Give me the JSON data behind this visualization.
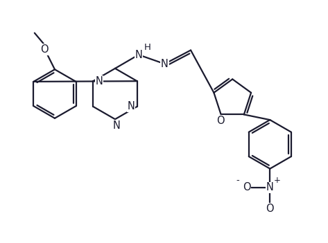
{
  "background_color": "#ffffff",
  "line_color": "#1a1a2e",
  "line_width": 1.6,
  "font_size": 10.5,
  "figsize": [
    4.73,
    3.51
  ],
  "dpi": 100,
  "xlim": [
    0,
    10
  ],
  "ylim": [
    0,
    7.4
  ]
}
